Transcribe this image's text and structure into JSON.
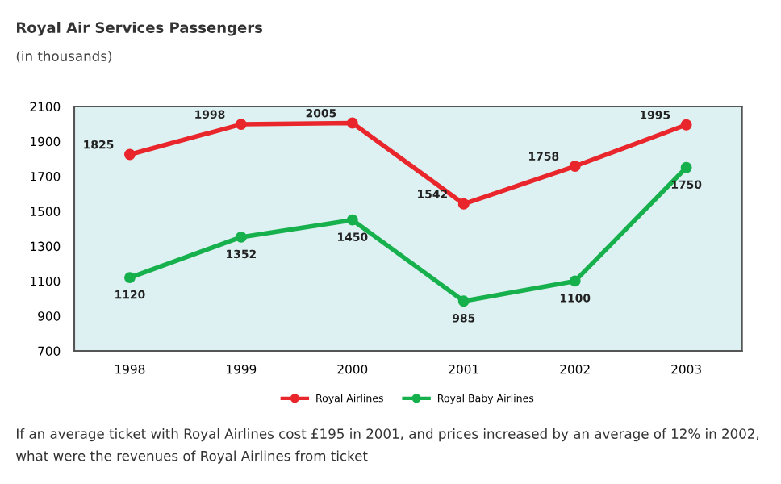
{
  "chart_data": {
    "type": "line",
    "title": "Royal Air Services Passengers",
    "subtitle": "(in thousands)",
    "categories": [
      "1998",
      "1999",
      "2000",
      "2001",
      "2002",
      "2003"
    ],
    "series": [
      {
        "name": "Royal Airlines",
        "color": "#e8262b",
        "values": [
          1825,
          1998,
          2005,
          1542,
          1758,
          1995
        ]
      },
      {
        "name": "Royal Baby Airlines",
        "color": "#16b04c",
        "values": [
          1120,
          1352,
          1450,
          985,
          1100,
          1750
        ]
      }
    ],
    "ylim": [
      700,
      2100
    ],
    "yticks": [
      700,
      900,
      1100,
      1300,
      1500,
      1700,
      1900,
      2100
    ],
    "data_labels": true,
    "marker": "circle",
    "line_style": "solid",
    "grid": false,
    "legend": "bottom",
    "annotations": [
      "If an average ticket with Royal Airlines cost £195 in 2001, and prices increased by an average of 12% in 2002, what were the revenues of Royal Airlines from ticket"
    ]
  }
}
